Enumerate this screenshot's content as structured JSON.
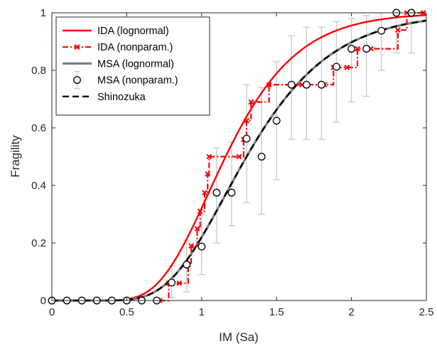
{
  "chart_data": {
    "type": "line",
    "title": "",
    "xlabel": "IM (Sa)",
    "ylabel": "Fragility",
    "xlim": [
      0,
      2.5
    ],
    "ylim": [
      0,
      1
    ],
    "xticks": [
      0,
      0.5,
      1,
      1.5,
      2,
      2.5
    ],
    "yticks": [
      0,
      0.2,
      0.4,
      0.6,
      0.8,
      1
    ],
    "xtick_labels": [
      "0",
      "0.5",
      "1",
      "1.5",
      "2",
      "2.5"
    ],
    "ytick_labels": [
      "0",
      "0.2",
      "0.4",
      "0.6",
      "0.8",
      "1"
    ],
    "grid": false,
    "legend_position": "top-left",
    "series": [
      {
        "name": "IDA (lognormal)",
        "kind": "lognormal-cdf",
        "median": 1.16,
        "beta": 0.32,
        "color": "#ff0000",
        "style": "solid"
      },
      {
        "name": "IDA (nonparam.)",
        "kind": "step",
        "color": "#ff0000",
        "style": "dash-dot",
        "marker": "x",
        "x": [
          0.72,
          0.78,
          0.85,
          0.91,
          0.93,
          0.97,
          0.99,
          1.02,
          1.04,
          1.05,
          1.25,
          1.28,
          1.3,
          1.33,
          1.45,
          1.67,
          1.82,
          1.88,
          1.97,
          2.04,
          2.13,
          2.31,
          2.37,
          2.48
        ],
        "y": [
          0.0,
          0.06,
          0.06,
          0.125,
          0.19,
          0.25,
          0.31,
          0.375,
          0.44,
          0.5,
          0.5,
          0.56,
          0.625,
          0.69,
          0.75,
          0.75,
          0.75,
          0.81,
          0.81,
          0.875,
          0.875,
          0.94,
          1.0,
          1.0
        ]
      },
      {
        "name": "MSA (lognormal)",
        "kind": "lognormal-cdf",
        "median": 1.3,
        "beta": 0.34,
        "color": "#808080",
        "style": "solid"
      },
      {
        "name": "MSA (nonparam.)",
        "kind": "points-with-errorbars",
        "color": "#000000",
        "marker": "o",
        "x": [
          0.0,
          0.1,
          0.2,
          0.3,
          0.4,
          0.5,
          0.6,
          0.7,
          0.8,
          0.9,
          1.0,
          1.1,
          1.2,
          1.3,
          1.4,
          1.5,
          1.6,
          1.7,
          1.8,
          1.9,
          2.0,
          2.1,
          2.2,
          2.3,
          2.4
        ],
        "y": [
          0.0,
          0.0,
          0.0,
          0.0,
          0.0,
          0.0,
          0.0,
          0.0,
          0.0625,
          0.125,
          0.1875,
          0.375,
          0.375,
          0.5625,
          0.5,
          0.625,
          0.75,
          0.75,
          0.75,
          0.8125,
          0.875,
          0.875,
          0.9375,
          1.0,
          1.0
        ],
        "error_low": [
          0.0,
          0.0,
          0.0,
          0.0,
          0.0,
          0.0,
          0.0,
          0.0,
          0.01,
          0.03,
          0.09,
          0.2,
          0.26,
          0.34,
          0.3,
          0.42,
          0.56,
          0.56,
          0.56,
          0.62,
          0.69,
          0.71,
          0.8,
          0.86,
          0.86
        ],
        "error_high": [
          0.0,
          0.0,
          0.0,
          0.0,
          0.0,
          0.0,
          0.0,
          0.0,
          0.12,
          0.21,
          0.3,
          0.53,
          0.55,
          0.75,
          0.74,
          0.83,
          0.92,
          0.95,
          0.95,
          0.97,
          0.98,
          0.99,
          1.0,
          1.0,
          1.0
        ]
      },
      {
        "name": "Shinozuka",
        "kind": "lognormal-cdf",
        "median": 1.3,
        "beta": 0.34,
        "color": "#000000",
        "style": "dashed"
      }
    ]
  }
}
